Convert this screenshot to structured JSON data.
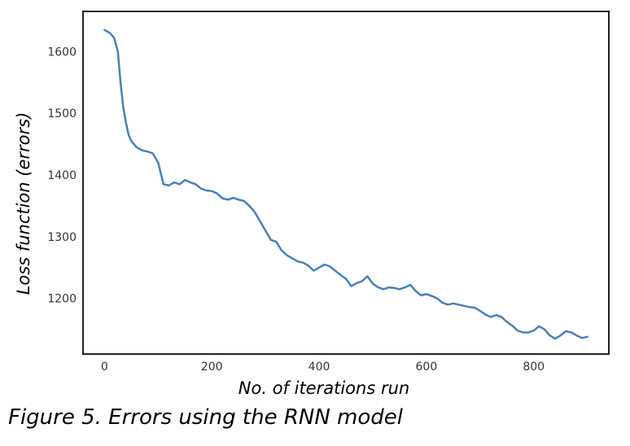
{
  "chart_data": {
    "type": "line",
    "title": "",
    "xlabel": "No. of iterations run",
    "ylabel": "Loss function (errors)",
    "xlim": [
      -40,
      940
    ],
    "ylim": [
      1110,
      1665
    ],
    "xticks": [
      0,
      200,
      400,
      600,
      800
    ],
    "yticks": [
      1200,
      1300,
      1400,
      1500,
      1600
    ],
    "grid": false,
    "legend": "none",
    "series": [
      {
        "color": "#4a7fba",
        "x": [
          0,
          10,
          18,
          25,
          30,
          35,
          40,
          45,
          50,
          60,
          70,
          80,
          90,
          100,
          110,
          120,
          130,
          140,
          150,
          160,
          170,
          180,
          190,
          200,
          210,
          220,
          230,
          240,
          250,
          260,
          270,
          280,
          290,
          300,
          310,
          320,
          330,
          340,
          350,
          360,
          370,
          380,
          390,
          400,
          410,
          420,
          430,
          440,
          450,
          460,
          470,
          480,
          490,
          500,
          510,
          520,
          530,
          540,
          550,
          560,
          570,
          580,
          590,
          600,
          610,
          620,
          630,
          640,
          650,
          660,
          670,
          680,
          690,
          700,
          710,
          720,
          730,
          740,
          750,
          760,
          770,
          780,
          790,
          800,
          810,
          820,
          830,
          840,
          850,
          860,
          870,
          880,
          890,
          900
        ],
        "y": [
          1635,
          1630,
          1622,
          1600,
          1550,
          1510,
          1485,
          1465,
          1455,
          1445,
          1440,
          1438,
          1435,
          1420,
          1385,
          1383,
          1388,
          1385,
          1392,
          1388,
          1385,
          1378,
          1375,
          1374,
          1370,
          1362,
          1360,
          1363,
          1360,
          1358,
          1350,
          1340,
          1325,
          1310,
          1295,
          1292,
          1278,
          1270,
          1265,
          1260,
          1258,
          1253,
          1245,
          1250,
          1255,
          1252,
          1245,
          1238,
          1232,
          1220,
          1225,
          1228,
          1236,
          1224,
          1218,
          1215,
          1218,
          1217,
          1215,
          1218,
          1222,
          1212,
          1205,
          1207,
          1204,
          1200,
          1193,
          1190,
          1192,
          1190,
          1188,
          1186,
          1185,
          1180,
          1174,
          1170,
          1173,
          1170,
          1162,
          1156,
          1148,
          1145,
          1145,
          1148,
          1155,
          1150,
          1140,
          1135,
          1140,
          1147,
          1145,
          1140,
          1136,
          1138
        ]
      }
    ]
  },
  "caption": "Figure 5. Errors using the RNN model"
}
